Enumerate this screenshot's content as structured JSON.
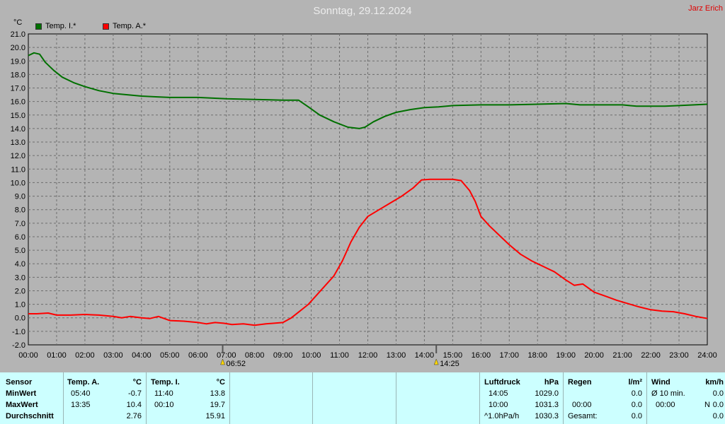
{
  "header": {
    "title": "Sonntag, 29.12.2024",
    "author": "Jarz Erich",
    "unit": "°C"
  },
  "chart_data": {
    "type": "line",
    "title": "Sonntag, 29.12.2024",
    "ylabel": "°C",
    "ylim": [
      -2.0,
      21.0
    ],
    "xlim": [
      0,
      24
    ],
    "grid": true,
    "legend": "top-left",
    "x_ticks": [
      "00:00",
      "01:00",
      "02:00",
      "03:00",
      "04:00",
      "05:00",
      "06:00",
      "07:00",
      "08:00",
      "09:00",
      "10:00",
      "11:00",
      "12:00",
      "13:00",
      "14:00",
      "15:00",
      "16:00",
      "17:00",
      "18:00",
      "19:00",
      "20:00",
      "21:00",
      "22:00",
      "23:00",
      "24:00"
    ],
    "y_ticks": [
      "-2.0",
      "-1.0",
      "0.0",
      "1.0",
      "2.0",
      "3.0",
      "4.0",
      "5.0",
      "6.0",
      "7.0",
      "8.0",
      "9.0",
      "10.0",
      "11.0",
      "12.0",
      "13.0",
      "14.0",
      "15.0",
      "16.0",
      "17.0",
      "18.0",
      "19.0",
      "20.0",
      "21.0"
    ],
    "markers": [
      {
        "label": "06:52",
        "x": 6.87
      },
      {
        "label": "14:25",
        "x": 14.42
      }
    ],
    "series": [
      {
        "name": "Temp. I.*",
        "color": "#007000",
        "points": [
          [
            0.0,
            19.4
          ],
          [
            0.2,
            19.6
          ],
          [
            0.4,
            19.5
          ],
          [
            0.6,
            18.9
          ],
          [
            0.9,
            18.3
          ],
          [
            1.2,
            17.8
          ],
          [
            1.6,
            17.4
          ],
          [
            2.0,
            17.1
          ],
          [
            2.5,
            16.8
          ],
          [
            3.0,
            16.6
          ],
          [
            3.5,
            16.5
          ],
          [
            4.0,
            16.4
          ],
          [
            4.5,
            16.35
          ],
          [
            5.0,
            16.3
          ],
          [
            6.0,
            16.3
          ],
          [
            7.0,
            16.2
          ],
          [
            8.0,
            16.15
          ],
          [
            9.0,
            16.1
          ],
          [
            9.55,
            16.1
          ],
          [
            9.9,
            15.6
          ],
          [
            10.3,
            15.0
          ],
          [
            10.8,
            14.5
          ],
          [
            11.3,
            14.1
          ],
          [
            11.7,
            14.0
          ],
          [
            11.9,
            14.1
          ],
          [
            12.2,
            14.5
          ],
          [
            12.6,
            14.9
          ],
          [
            13.0,
            15.2
          ],
          [
            13.5,
            15.4
          ],
          [
            14.0,
            15.55
          ],
          [
            14.5,
            15.6
          ],
          [
            15.0,
            15.7
          ],
          [
            16.0,
            15.75
          ],
          [
            17.0,
            15.75
          ],
          [
            18.0,
            15.8
          ],
          [
            19.0,
            15.85
          ],
          [
            19.5,
            15.75
          ],
          [
            20.5,
            15.75
          ],
          [
            21.0,
            15.75
          ],
          [
            21.5,
            15.65
          ],
          [
            22.5,
            15.65
          ],
          [
            23.0,
            15.7
          ],
          [
            24.0,
            15.8
          ]
        ]
      },
      {
        "name": "Temp. A.*",
        "color": "#ff0000",
        "points": [
          [
            0.0,
            0.3
          ],
          [
            0.3,
            0.3
          ],
          [
            0.7,
            0.35
          ],
          [
            1.0,
            0.2
          ],
          [
            1.5,
            0.2
          ],
          [
            2.0,
            0.25
          ],
          [
            2.5,
            0.2
          ],
          [
            3.0,
            0.1
          ],
          [
            3.3,
            0.0
          ],
          [
            3.6,
            0.1
          ],
          [
            4.0,
            0.0
          ],
          [
            4.3,
            -0.05
          ],
          [
            4.6,
            0.1
          ],
          [
            5.0,
            -0.2
          ],
          [
            5.5,
            -0.25
          ],
          [
            6.0,
            -0.35
          ],
          [
            6.3,
            -0.45
          ],
          [
            6.6,
            -0.35
          ],
          [
            6.9,
            -0.4
          ],
          [
            7.2,
            -0.5
          ],
          [
            7.6,
            -0.45
          ],
          [
            8.0,
            -0.55
          ],
          [
            8.4,
            -0.45
          ],
          [
            9.0,
            -0.35
          ],
          [
            9.3,
            0.0
          ],
          [
            9.6,
            0.5
          ],
          [
            9.9,
            1.0
          ],
          [
            10.2,
            1.7
          ],
          [
            10.5,
            2.4
          ],
          [
            10.8,
            3.1
          ],
          [
            11.1,
            4.2
          ],
          [
            11.4,
            5.6
          ],
          [
            11.7,
            6.7
          ],
          [
            12.0,
            7.5
          ],
          [
            12.4,
            8.0
          ],
          [
            12.8,
            8.5
          ],
          [
            13.2,
            9.0
          ],
          [
            13.6,
            9.6
          ],
          [
            13.9,
            10.2
          ],
          [
            14.2,
            10.25
          ],
          [
            15.0,
            10.25
          ],
          [
            15.3,
            10.15
          ],
          [
            15.6,
            9.4
          ],
          [
            15.8,
            8.6
          ],
          [
            16.0,
            7.5
          ],
          [
            16.3,
            6.8
          ],
          [
            16.6,
            6.2
          ],
          [
            17.0,
            5.4
          ],
          [
            17.4,
            4.7
          ],
          [
            17.8,
            4.2
          ],
          [
            18.2,
            3.8
          ],
          [
            18.6,
            3.4
          ],
          [
            19.0,
            2.8
          ],
          [
            19.3,
            2.4
          ],
          [
            19.6,
            2.5
          ],
          [
            20.0,
            1.9
          ],
          [
            20.4,
            1.6
          ],
          [
            20.8,
            1.3
          ],
          [
            21.2,
            1.05
          ],
          [
            21.6,
            0.8
          ],
          [
            22.0,
            0.6
          ],
          [
            22.4,
            0.5
          ],
          [
            22.8,
            0.45
          ],
          [
            23.2,
            0.3
          ],
          [
            23.6,
            0.1
          ],
          [
            24.0,
            -0.05
          ]
        ]
      }
    ]
  },
  "table": {
    "sensor": {
      "header": "Sensor",
      "min": "MinWert",
      "max": "MaxWert",
      "avg": "Durchschnitt"
    },
    "temp_a": {
      "header": "Temp. A.",
      "unit": "°C",
      "min_time": "05:40",
      "min_val": "-0.7",
      "max_time": "13:35",
      "max_val": "10.4",
      "avg_val": "2.76"
    },
    "temp_i": {
      "header": "Temp. I.",
      "unit": "°C",
      "min_time": "11:40",
      "min_val": "13.8",
      "max_time": "00:10",
      "max_val": "19.7",
      "avg_val": "15.91"
    },
    "pressure": {
      "header": "Luftdruck",
      "unit": "hPa",
      "min_time": "14:05",
      "min_val": "1029.0",
      "max_time": "10:00",
      "max_val": "1031.3",
      "trend_label": "^1.0hPa/h",
      "trend_val": "1030.3"
    },
    "rain": {
      "header": "Regen",
      "unit": "l/m²",
      "row2_time": "00:00",
      "row2_val": "0.0",
      "row1_val": "0.0",
      "total_label": "Gesamt:",
      "total_val": "0.0"
    },
    "wind": {
      "header": "Wind",
      "unit": "km/h",
      "avg_label": "Ø 10 min.",
      "avg_val": "0.0",
      "max_time": "00:00",
      "max_dir": "N",
      "max_val": "0.0",
      "row3_val": "0.0"
    }
  }
}
